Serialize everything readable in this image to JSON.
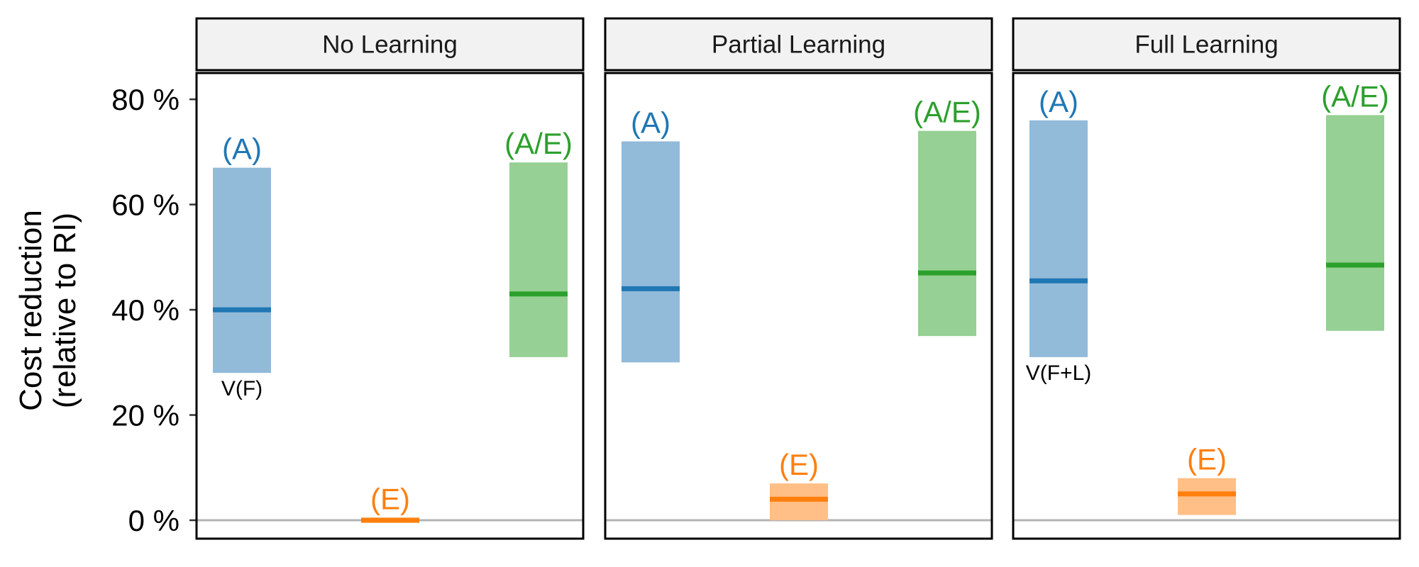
{
  "chart_data": {
    "type": "bar",
    "ylabel_lines": [
      "Cost reduction",
      "(relative to RI)"
    ],
    "ylim": [
      -3.5,
      85
    ],
    "yticks": [
      0,
      20,
      40,
      60,
      80
    ],
    "ytick_labels": [
      "0 %",
      "20 %",
      "40 %",
      "60 %",
      "80 %"
    ],
    "reference_line": 0,
    "colors": {
      "A": "#1f77b4",
      "A_fill": "#92bad9",
      "E": "#ff7f0e",
      "E_fill": "#ffbf86",
      "AE": "#2ca02c",
      "AE_fill": "#96d094",
      "ref_line": "#b3b3b3",
      "strip_bg": "#f2f2f2"
    },
    "panels": [
      {
        "title": "No Learning",
        "bars": [
          {
            "label": "(A)",
            "key": "A",
            "low": 28,
            "high": 67,
            "mid": 40,
            "sub_label": "V(F)"
          },
          {
            "label": "(E)",
            "key": "E",
            "low": -0.5,
            "high": 0.5,
            "mid": 0,
            "sub_label": ""
          },
          {
            "label": "(A/E)",
            "key": "AE",
            "low": 31,
            "high": 68,
            "mid": 43,
            "sub_label": ""
          }
        ]
      },
      {
        "title": "Partial Learning",
        "bars": [
          {
            "label": "(A)",
            "key": "A",
            "low": 30,
            "high": 72,
            "mid": 44,
            "sub_label": ""
          },
          {
            "label": "(E)",
            "key": "E",
            "low": 0,
            "high": 7,
            "mid": 4,
            "sub_label": ""
          },
          {
            "label": "(A/E)",
            "key": "AE",
            "low": 35,
            "high": 74,
            "mid": 47,
            "sub_label": ""
          }
        ]
      },
      {
        "title": "Full Learning",
        "bars": [
          {
            "label": "(A)",
            "key": "A",
            "low": 31,
            "high": 76,
            "mid": 45.5,
            "sub_label": "V(F+L)"
          },
          {
            "label": "(E)",
            "key": "E",
            "low": 1,
            "high": 8,
            "mid": 5,
            "sub_label": ""
          },
          {
            "label": "(A/E)",
            "key": "AE",
            "low": 36,
            "high": 77,
            "mid": 48.5,
            "sub_label": ""
          }
        ]
      }
    ]
  }
}
